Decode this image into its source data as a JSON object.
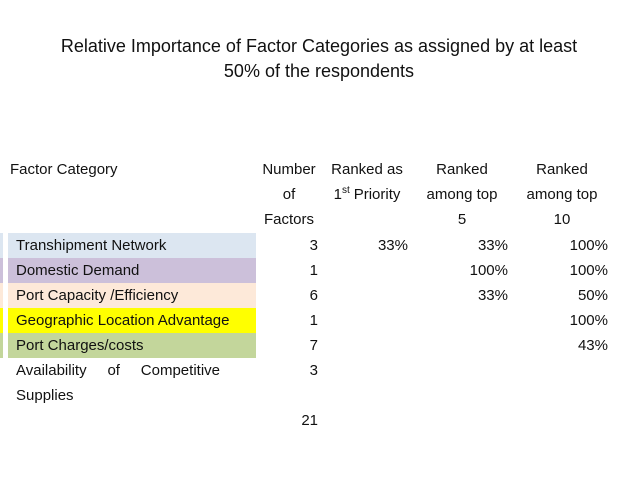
{
  "title": {
    "line1": "Relative Importance of Factor Categories as assigned by at least",
    "line2": "50% of the respondents"
  },
  "table": {
    "header": {
      "factor_category": "Factor Category",
      "number_of_factors": {
        "line1": "Number",
        "line2": "of",
        "line3": "Factors"
      },
      "ranked_first": {
        "line1": "Ranked as",
        "num": "1",
        "sup": "st",
        "rest": "Priority"
      },
      "ranked_top5": {
        "line1": "Ranked",
        "line2": "among top",
        "line3": "5"
      },
      "ranked_top10": {
        "line1": "Ranked",
        "line2": "among top",
        "line3": "10"
      }
    },
    "rows": [
      {
        "label": "Transhipment Network",
        "highlight": "#dce6f1",
        "number": "3",
        "ranked_first": "33%",
        "ranked_top5": "33%",
        "ranked_top10": "100%"
      },
      {
        "label": "Domestic Demand",
        "highlight": "#ccc0da",
        "number": "1",
        "ranked_first": "",
        "ranked_top5": "100%",
        "ranked_top10": "100%"
      },
      {
        "label": "Port Capacity /Efficiency",
        "highlight": "#fde9d9",
        "number": "6",
        "ranked_first": "",
        "ranked_top5": "33%",
        "ranked_top10": "50%"
      },
      {
        "label": "Geographic Location Advantage",
        "highlight": "#ffff00",
        "number": "1",
        "ranked_first": "",
        "ranked_top5": "",
        "ranked_top10": "100%"
      },
      {
        "label": "Port Charges/costs",
        "highlight": "#c3d69b",
        "number": "7",
        "ranked_first": "",
        "ranked_top5": "",
        "ranked_top10": "43%"
      },
      {
        "label": "Availability of Competitive Supplies",
        "label_lines": {
          "word1": "Availability",
          "word2": "of",
          "word3": "Competitive",
          "line2": "Supplies"
        },
        "highlight": "",
        "number": "3",
        "ranked_first": "",
        "ranked_top5": "",
        "ranked_top10": ""
      }
    ],
    "total": {
      "number_of_factors": "21"
    }
  },
  "colors": {
    "text": "#111111",
    "background": "#ffffff"
  }
}
